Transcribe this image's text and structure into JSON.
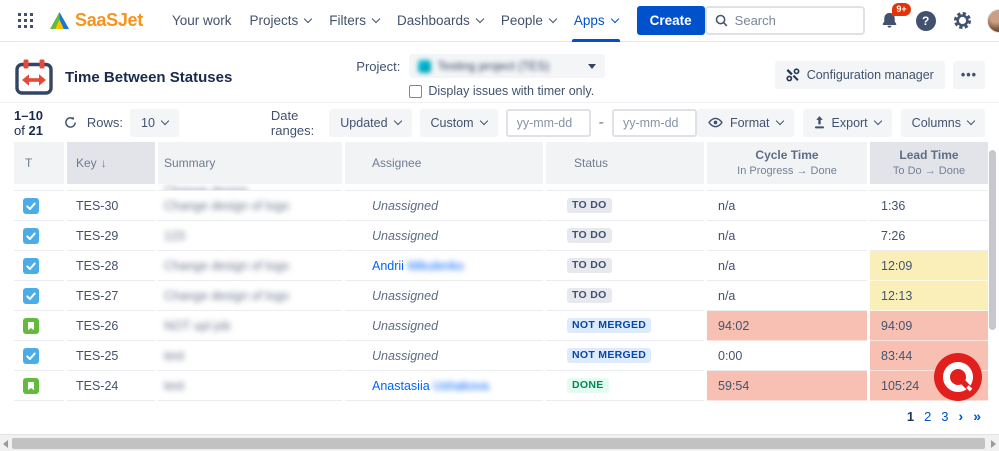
{
  "nav": {
    "logo_text": "SaaSJet",
    "items": [
      {
        "label": "Your work",
        "chevron": false,
        "active": false
      },
      {
        "label": "Projects",
        "chevron": true,
        "active": false
      },
      {
        "label": "Filters",
        "chevron": true,
        "active": false
      },
      {
        "label": "Dashboards",
        "chevron": true,
        "active": false
      },
      {
        "label": "People",
        "chevron": true,
        "active": false
      },
      {
        "label": "Apps",
        "chevron": true,
        "active": true
      }
    ],
    "create_label": "Create",
    "search_placeholder": "Search",
    "notification_count": "9+",
    "help_glyph": "?"
  },
  "header": {
    "title": "Time Between Statuses",
    "project_label": "Project:",
    "project_value": "Testing project (TES)",
    "timer_checkbox_label": "Display issues with timer only.",
    "config_button_label": "Configuration manager",
    "more_button_label": "•••"
  },
  "toolbar": {
    "range_start": "1–10",
    "range_of": "of",
    "range_total": "21",
    "rows_label": "Rows:",
    "rows_value": "10",
    "date_ranges_label": "Date ranges:",
    "date_field_value": "Updated",
    "date_mode_value": "Custom",
    "date_from_placeholder": "yy-mm-dd",
    "date_separator": "-",
    "date_to_placeholder": "yy-mm-dd",
    "format_label": "Format",
    "export_label": "Export",
    "columns_label": "Columns"
  },
  "table": {
    "headers": {
      "type": "T",
      "key": "Key",
      "key_sort_icon": "↓",
      "summary": "Summary",
      "assignee": "Assignee",
      "status": "Status",
      "cycle_title": "Cycle Time",
      "cycle_subtitle": "In Progress → Done",
      "lead_title": "Lead Time",
      "lead_subtitle": "To Do → Done"
    },
    "partial_row_summary": "Change design",
    "rows": [
      {
        "type": "task",
        "key": "TES-30",
        "summary": "Change design of logo",
        "assignee": {
          "name": "Unassigned"
        },
        "status": {
          "label": "TO DO",
          "kind": "todo"
        },
        "cycle": {
          "value": "n/a",
          "highlight": "none"
        },
        "lead": {
          "value": "1:36",
          "highlight": "none"
        }
      },
      {
        "type": "task",
        "key": "TES-29",
        "summary": "123",
        "assignee": {
          "name": "Unassigned"
        },
        "status": {
          "label": "TO DO",
          "kind": "todo"
        },
        "cycle": {
          "value": "n/a",
          "highlight": "none"
        },
        "lead": {
          "value": "7:26",
          "highlight": "none"
        }
      },
      {
        "type": "task",
        "key": "TES-28",
        "summary": "Change design of logo",
        "assignee": {
          "first": "Andrii",
          "last_blurred": "Mikulenko"
        },
        "status": {
          "label": "TO DO",
          "kind": "todo"
        },
        "cycle": {
          "value": "n/a",
          "highlight": "none"
        },
        "lead": {
          "value": "12:09",
          "highlight": "warn"
        }
      },
      {
        "type": "task",
        "key": "TES-27",
        "summary": "Change design of logo",
        "assignee": {
          "name": "Unassigned"
        },
        "status": {
          "label": "TO DO",
          "kind": "todo"
        },
        "cycle": {
          "value": "n/a",
          "highlight": "none"
        },
        "lead": {
          "value": "12:13",
          "highlight": "warn"
        }
      },
      {
        "type": "story",
        "key": "TES-26",
        "summary": "NOT upl job",
        "assignee": {
          "name": "Unassigned"
        },
        "status": {
          "label": "NOT MERGED",
          "kind": "notmerged"
        },
        "cycle": {
          "value": "94:02",
          "highlight": "over"
        },
        "lead": {
          "value": "94:09",
          "highlight": "over"
        }
      },
      {
        "type": "task",
        "key": "TES-25",
        "summary": "test",
        "assignee": {
          "name": "Unassigned"
        },
        "status": {
          "label": "NOT MERGED",
          "kind": "notmerged"
        },
        "cycle": {
          "value": "0:00",
          "highlight": "none"
        },
        "lead": {
          "value": "83:44",
          "highlight": "over"
        }
      },
      {
        "type": "story",
        "key": "TES-24",
        "summary": "test",
        "assignee": {
          "first": "Anastasiia",
          "last_blurred": "Ushakova"
        },
        "status": {
          "label": "DONE",
          "kind": "done"
        },
        "cycle": {
          "value": "59:54",
          "highlight": "over"
        },
        "lead": {
          "value": "105:24",
          "highlight": "over"
        }
      }
    ],
    "pagination": {
      "pages": [
        "1",
        "2",
        "3"
      ],
      "current_page": "1",
      "next_glyph": "›",
      "last_glyph": "»"
    }
  },
  "colors": {
    "accent_blue": "#0052CC",
    "logo_orange": "#F7941E",
    "badge_todo_bg": "#E7E9EE",
    "badge_notmerged_bg": "#DEEBFF",
    "badge_notmerged_text": "#0747A6",
    "badge_done_bg": "#E3FCEF",
    "badge_done_text": "#00875A",
    "cell_warning_bg": "#FAEFB9",
    "cell_overdue_bg": "#F8C0B2",
    "notification_red": "#DE350B",
    "record_logo_red": "#E1201E"
  }
}
